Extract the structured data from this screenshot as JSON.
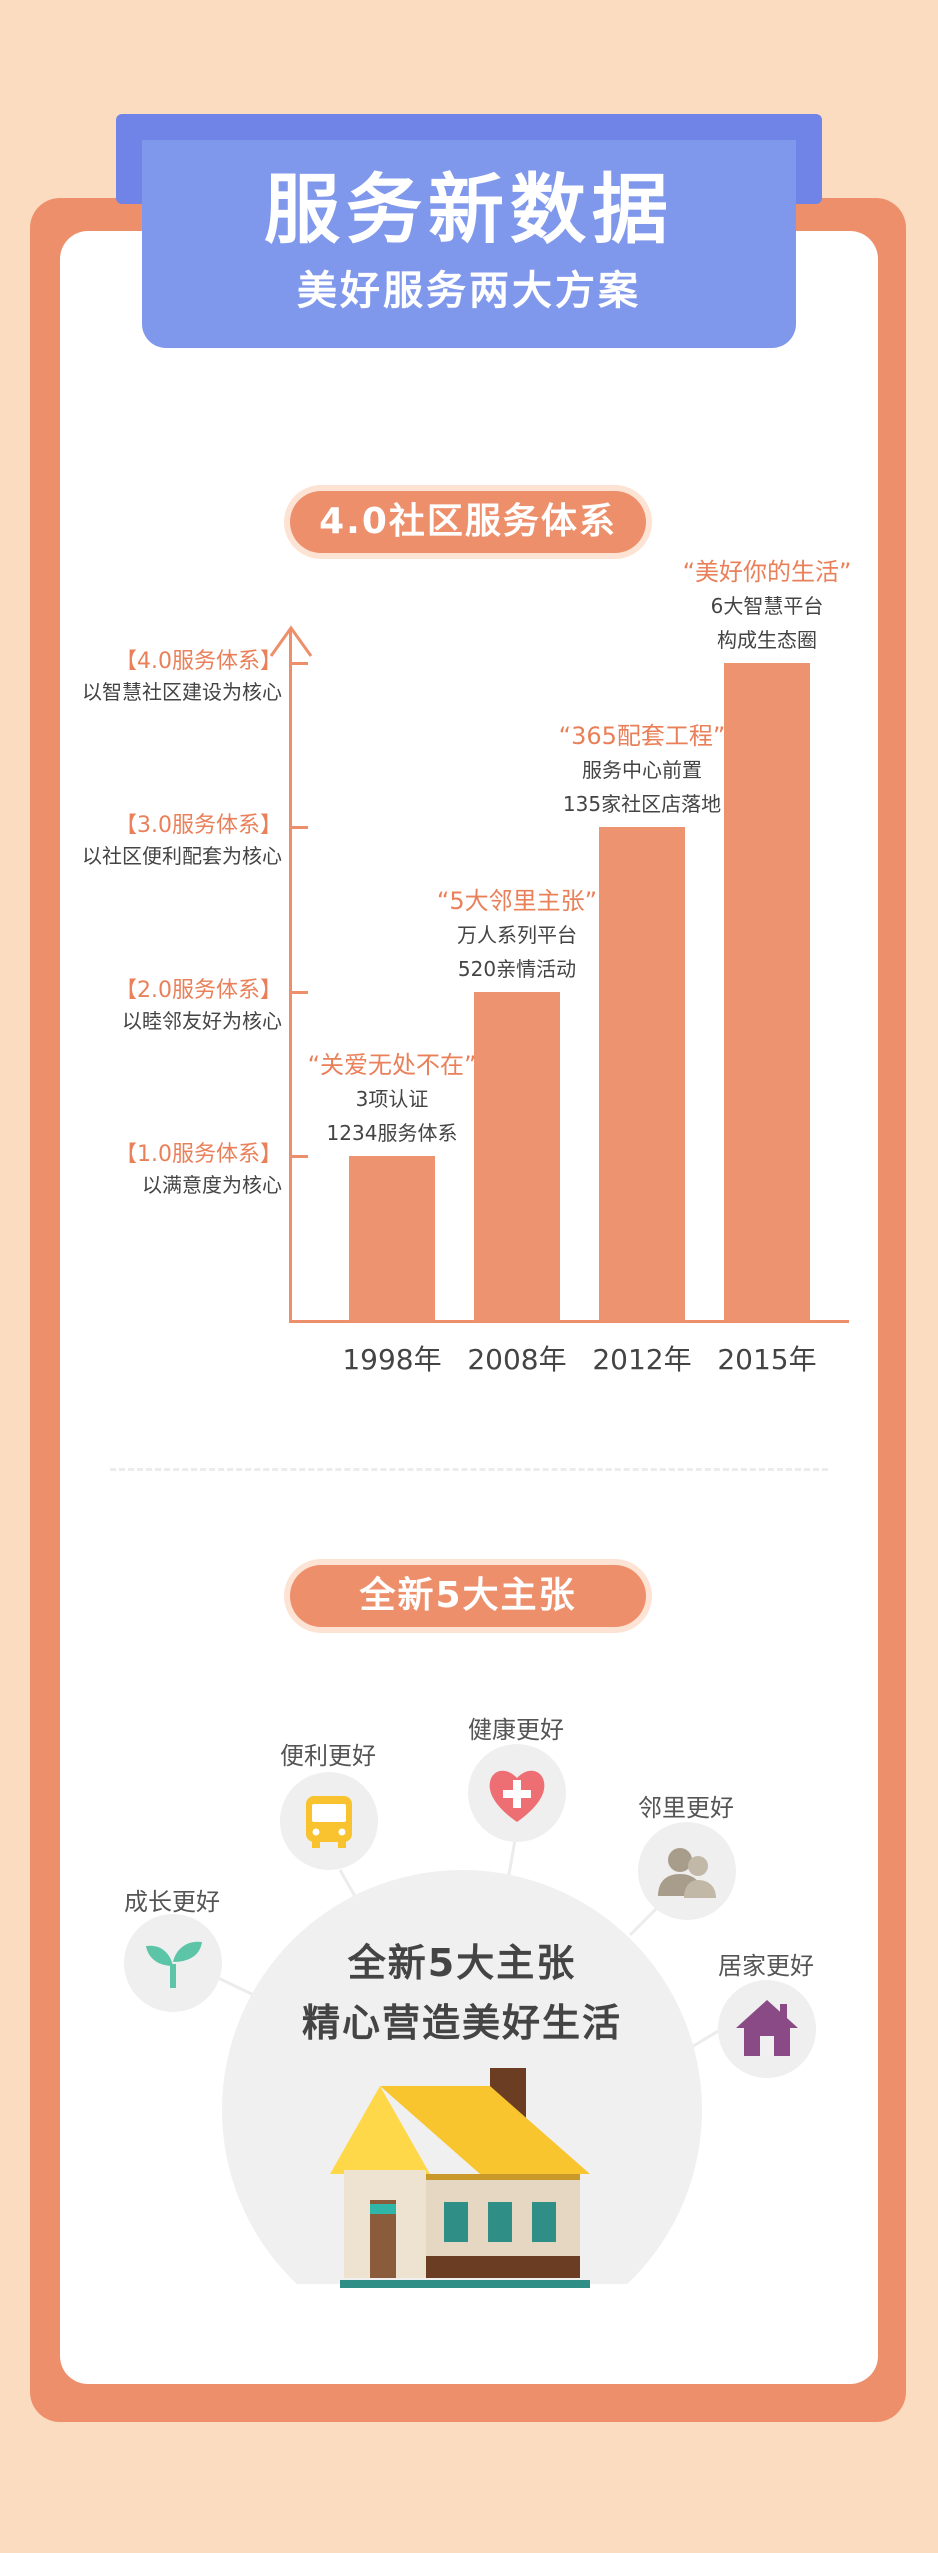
{
  "header": {
    "title": "服务新数据",
    "subtitle": "美好服务两大方案"
  },
  "section1": {
    "pill": "4.0社区服务体系"
  },
  "chart_data": {
    "type": "bar",
    "categories": [
      "1998年",
      "2008年",
      "2012年",
      "2015年"
    ],
    "values": [
      1,
      2,
      3,
      4
    ],
    "y_levels": [
      {
        "title": "【1.0服务体系】",
        "desc": "以满意度为核心"
      },
      {
        "title": "【2.0服务体系】",
        "desc": "以睦邻友好为核心"
      },
      {
        "title": "【3.0服务体系】",
        "desc": "以社区便利配套为核心"
      },
      {
        "title": "【4.0服务体系】",
        "desc": "以智慧社区建设为核心"
      }
    ],
    "annotations": [
      {
        "quote": "“关爱无处不在”",
        "line1": "3项认证",
        "line2": "1234服务体系"
      },
      {
        "quote": "“5大邻里主张”",
        "line1": "万人系列平台",
        "line2": "520亲情活动"
      },
      {
        "quote": "“365配套工程”",
        "line1": "服务中心前置",
        "line2": "135家社区店落地"
      },
      {
        "quote": "“美好你的生活”",
        "line1": "6大智慧平台",
        "line2": "构成生态圈"
      }
    ],
    "ylim": [
      0,
      4.2
    ]
  },
  "section2": {
    "pill": "全新5大主张",
    "center_line1": "全新5大主张",
    "center_line2": "精心营造美好生活",
    "items": [
      {
        "label": "成长更好",
        "icon": "sprout-icon"
      },
      {
        "label": "便利更好",
        "icon": "bus-icon"
      },
      {
        "label": "健康更好",
        "icon": "heart-plus-icon"
      },
      {
        "label": "邻里更好",
        "icon": "people-icon"
      },
      {
        "label": "居家更好",
        "icon": "home-icon"
      }
    ]
  },
  "colors": {
    "accent": "#ee8f6c",
    "ribbon": "#8098ec",
    "background": "#fbdcc0"
  }
}
